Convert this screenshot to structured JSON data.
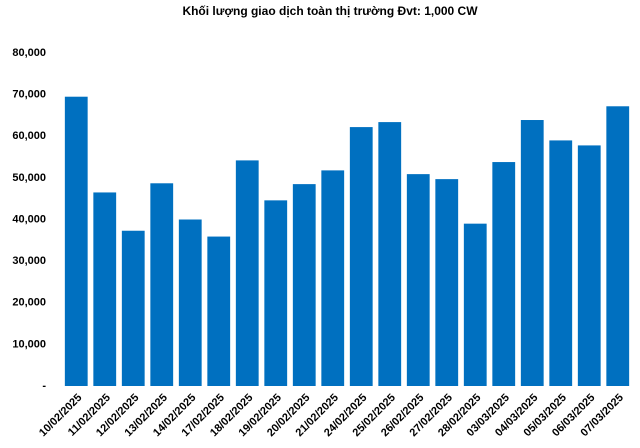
{
  "chart_data": {
    "type": "bar",
    "title": "Khối lượng giao dịch toàn thị trường Đvt: 1,000 CW",
    "categories": [
      "10/02/2025",
      "11/02/2025",
      "12/02/2025",
      "13/02/2025",
      "14/02/2025",
      "17/02/2025",
      "18/02/2025",
      "19/02/2025",
      "20/02/2025",
      "21/02/2025",
      "24/02/2025",
      "25/02/2025",
      "26/02/2025",
      "27/02/2025",
      "28/02/2025",
      "03/03/2025",
      "04/03/2025",
      "05/03/2025",
      "06/03/2025",
      "07/03/2025"
    ],
    "values": [
      69500,
      46500,
      37300,
      48700,
      40000,
      35900,
      54200,
      44600,
      48500,
      51800,
      62200,
      63400,
      50900,
      49700,
      39000,
      53800,
      63900,
      59000,
      57800,
      67200
    ],
    "color": "#0070c0",
    "ylim": [
      0,
      80000
    ],
    "yticks": [
      {
        "value": 0,
        "label": "-"
      },
      {
        "value": 10000,
        "label": "10,000"
      },
      {
        "value": 20000,
        "label": "20,000"
      },
      {
        "value": 30000,
        "label": "30,000"
      },
      {
        "value": 40000,
        "label": "40,000"
      },
      {
        "value": 50000,
        "label": "50,000"
      },
      {
        "value": 60000,
        "label": "60,000"
      },
      {
        "value": 70000,
        "label": "70,000"
      },
      {
        "value": 80000,
        "label": "80,000"
      }
    ],
    "grid": false
  }
}
